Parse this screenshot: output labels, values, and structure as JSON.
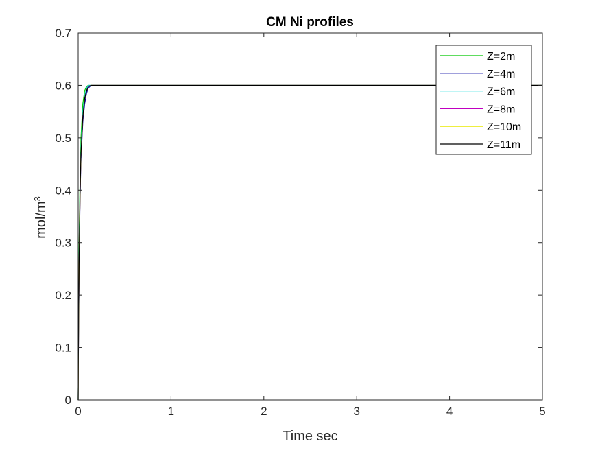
{
  "chart_data": {
    "type": "line",
    "title": "CM Ni profiles",
    "xlabel": "Time sec",
    "ylabel_base": "mol/m",
    "ylabel_sup": "3",
    "xlim": [
      0,
      5
    ],
    "ylim": [
      0,
      0.7
    ],
    "xticks": [
      0,
      1,
      2,
      3,
      4,
      5
    ],
    "xtick_labels": [
      "0",
      "1",
      "2",
      "3",
      "4",
      "5"
    ],
    "yticks": [
      0,
      0.1,
      0.2,
      0.3,
      0.4,
      0.5,
      0.6,
      0.7
    ],
    "ytick_labels": [
      "0",
      "0.1",
      "0.2",
      "0.3",
      "0.4",
      "0.5",
      "0.6",
      "0.7"
    ],
    "grid": false,
    "legend_position": "top-right",
    "series": [
      {
        "name": "Z=2m",
        "color": "#00c800",
        "x": [
          0,
          0.005,
          0.01,
          0.02,
          0.03,
          0.05,
          0.07,
          0.09,
          0.11,
          0.14,
          0.2,
          5
        ],
        "y": [
          0,
          0.2,
          0.3,
          0.42,
          0.5,
          0.565,
          0.59,
          0.598,
          0.6,
          0.6,
          0.6,
          0.6
        ]
      },
      {
        "name": "Z=4m",
        "color": "#0000a0",
        "x": [
          0,
          0.005,
          0.01,
          0.02,
          0.03,
          0.05,
          0.07,
          0.09,
          0.11,
          0.14,
          0.2,
          5
        ],
        "y": [
          0,
          0.15,
          0.25,
          0.38,
          0.46,
          0.53,
          0.565,
          0.585,
          0.595,
          0.6,
          0.6,
          0.6
        ]
      },
      {
        "name": "Z=6m",
        "color": "#00d8d8",
        "x": [
          0,
          0.005,
          0.01,
          0.02,
          0.03,
          0.05,
          0.07,
          0.09,
          0.11,
          0.14,
          0.2,
          5
        ],
        "y": [
          0,
          0.17,
          0.27,
          0.4,
          0.48,
          0.55,
          0.58,
          0.595,
          0.6,
          0.6,
          0.6,
          0.6
        ]
      },
      {
        "name": "Z=8m",
        "color": "#c000c0",
        "x": [
          0,
          0.005,
          0.01,
          0.02,
          0.03,
          0.05,
          0.07,
          0.09,
          0.11,
          0.14,
          0.2,
          5
        ],
        "y": [
          0,
          0.16,
          0.26,
          0.39,
          0.47,
          0.54,
          0.575,
          0.59,
          0.598,
          0.6,
          0.6,
          0.6
        ]
      },
      {
        "name": "Z=10m",
        "color": "#e8e800",
        "x": [
          0,
          0.005,
          0.01,
          0.02,
          0.03,
          0.05,
          0.07,
          0.09,
          0.11,
          0.14,
          0.2,
          5
        ],
        "y": [
          0,
          0.16,
          0.26,
          0.39,
          0.47,
          0.54,
          0.575,
          0.59,
          0.598,
          0.6,
          0.6,
          0.6
        ]
      },
      {
        "name": "Z=11m",
        "color": "#000000",
        "x": [
          0,
          0.005,
          0.01,
          0.02,
          0.03,
          0.05,
          0.07,
          0.09,
          0.11,
          0.14,
          0.2,
          5
        ],
        "y": [
          0,
          0.16,
          0.26,
          0.39,
          0.47,
          0.54,
          0.575,
          0.59,
          0.598,
          0.6,
          0.6,
          0.6
        ]
      }
    ]
  }
}
